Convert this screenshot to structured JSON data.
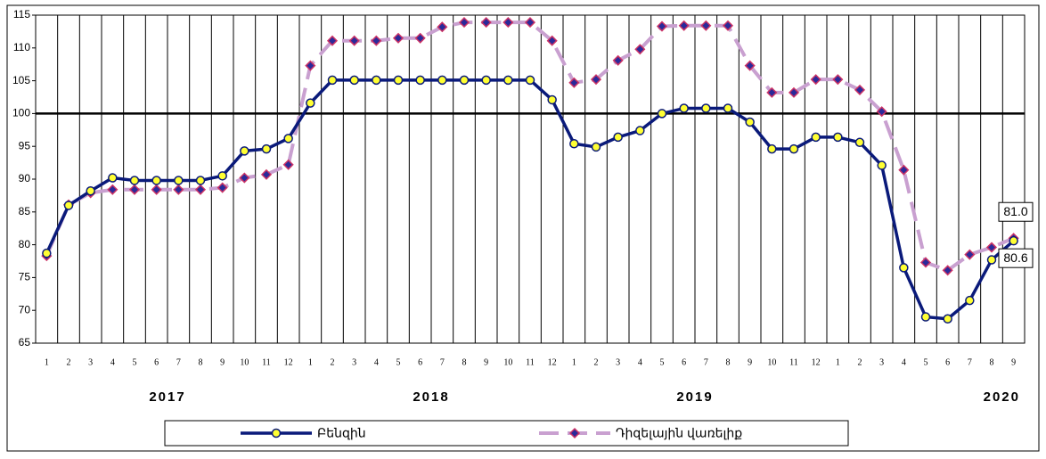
{
  "chart_data": {
    "type": "line",
    "categories": [
      "1",
      "2",
      "3",
      "4",
      "5",
      "6",
      "7",
      "8",
      "9",
      "10",
      "11",
      "12",
      "1",
      "2",
      "3",
      "4",
      "5",
      "6",
      "7",
      "8",
      "9",
      "10",
      "11",
      "12",
      "1",
      "2",
      "3",
      "4",
      "5",
      "6",
      "7",
      "8",
      "9",
      "10",
      "11",
      "12",
      "1",
      "2",
      "3",
      "4",
      "5",
      "6",
      "7",
      "8",
      "9"
    ],
    "groups": [
      {
        "label": "2017",
        "size": 12
      },
      {
        "label": "2018",
        "size": 12
      },
      {
        "label": "2019",
        "size": 12
      },
      {
        "label": "2020",
        "size": 9
      }
    ],
    "series": [
      {
        "name": "Բենզին",
        "color": "#0a1a7a",
        "marker": "circle",
        "marker_color": "#ffff33",
        "values": [
          78.7,
          86,
          88.2,
          90.2,
          89.8,
          89.8,
          89.8,
          89.8,
          90.5,
          94.3,
          94.6,
          96.2,
          101.6,
          105.1,
          105.1,
          105.1,
          105.1,
          105.1,
          105.1,
          105.1,
          105.1,
          105.1,
          105.1,
          102.1,
          95.4,
          94.9,
          96.4,
          97.4,
          100,
          100.8,
          100.8,
          100.8,
          98.7,
          94.6,
          94.6,
          96.4,
          96.4,
          95.6,
          92.1,
          76.5,
          69,
          68.7,
          71.5,
          77.7,
          80.6
        ],
        "value_labels": [
          null,
          null,
          null,
          null,
          null,
          null,
          null,
          null,
          null,
          null,
          null,
          null,
          null,
          null,
          null,
          null,
          null,
          null,
          null,
          null,
          null,
          null,
          null,
          null,
          null,
          null,
          null,
          null,
          null,
          null,
          null,
          null,
          null,
          null,
          null,
          null,
          null,
          null,
          null,
          null,
          null,
          null,
          null,
          null,
          "80.6"
        ]
      },
      {
        "name": "Դիզելային վառելիք",
        "color": "#c9a0d0",
        "marker": "diamond",
        "marker_color": "#cc3366",
        "values": [
          78.3,
          86.1,
          87.9,
          88.4,
          88.4,
          88.4,
          88.4,
          88.4,
          88.7,
          90.2,
          90.7,
          92.2,
          107.3,
          111.1,
          111.1,
          111.1,
          111.5,
          111.5,
          113.2,
          113.9,
          113.9,
          113.9,
          113.9,
          111.1,
          104.7,
          105.2,
          108.1,
          109.8,
          113.3,
          113.4,
          113.4,
          113.4,
          107.3,
          103.2,
          103.2,
          105.2,
          105.2,
          103.6,
          100.3,
          91.4,
          77.3,
          76.1,
          78.5,
          79.6,
          81
        ],
        "value_labels": [
          null,
          null,
          null,
          null,
          null,
          null,
          null,
          null,
          null,
          null,
          null,
          null,
          null,
          null,
          null,
          null,
          null,
          null,
          null,
          null,
          null,
          null,
          null,
          null,
          null,
          null,
          null,
          null,
          null,
          null,
          null,
          null,
          null,
          null,
          null,
          null,
          null,
          null,
          null,
          null,
          null,
          null,
          null,
          null,
          "81.0"
        ]
      }
    ],
    "ylim": [
      65,
      115
    ],
    "yticks": [
      65,
      70,
      75,
      80,
      85,
      90,
      95,
      100,
      105,
      110,
      115
    ],
    "reference_line": 100,
    "grid": true,
    "legend": "bottom"
  }
}
